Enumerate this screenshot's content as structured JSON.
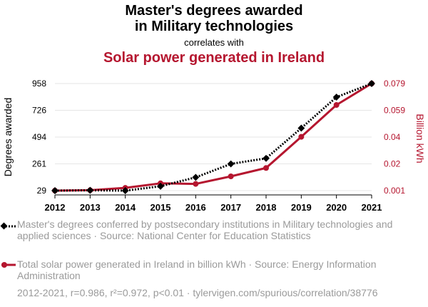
{
  "header": {
    "title_line1": "Master's degrees awarded",
    "title_line2": "in Military technologies",
    "correlates": "correlates with",
    "title2": "Solar power generated in Ireland"
  },
  "colors": {
    "series1": "#000000",
    "series2": "#b5162f",
    "grid": "#e6e6e6",
    "muted": "#9a9a9a"
  },
  "chart_data": {
    "type": "line",
    "x": [
      2012,
      2013,
      2014,
      2015,
      2016,
      2017,
      2018,
      2019,
      2020,
      2021
    ],
    "series": [
      {
        "name": "Master's degrees conferred by postsecondary institutions in Military technologies and applied sciences",
        "axis": "left",
        "values": [
          29,
          32,
          29,
          67,
          144,
          261,
          309,
          571,
          840,
          958
        ]
      },
      {
        "name": "Total solar power generated in Ireland in billion kWh",
        "axis": "right",
        "values": [
          0.001,
          0.0013,
          0.003,
          0.0063,
          0.0059,
          0.0114,
          0.0175,
          0.0402,
          0.0634,
          0.079
        ]
      }
    ],
    "y_left": {
      "label": "Degrees awarded",
      "ticks": [
        "29",
        "261",
        "494",
        "726",
        "958"
      ],
      "ylim": [
        29,
        958
      ]
    },
    "y_right": {
      "label": "Billion kWh",
      "ticks": [
        "0.001",
        "0.02",
        "0.04",
        "0.059",
        "0.079"
      ],
      "ylim": [
        0.001,
        0.079
      ]
    },
    "x_ticks": [
      "2012",
      "2013",
      "2014",
      "2015",
      "2016",
      "2017",
      "2018",
      "2019",
      "2020",
      "2021"
    ],
    "grid": true
  },
  "legend": {
    "item1": "Master's degrees conferred by postsecondary institutions in Military technologies and applied sciences · Source: National Center for Education Statistics",
    "item2": "Total solar power generated in Ireland in billion kWh · Source: Energy Information Administration"
  },
  "footer": "2012-2021, r=0.986, r²=0.972, p<0.01 · tylervigen.com/spurious/correlation/38776"
}
